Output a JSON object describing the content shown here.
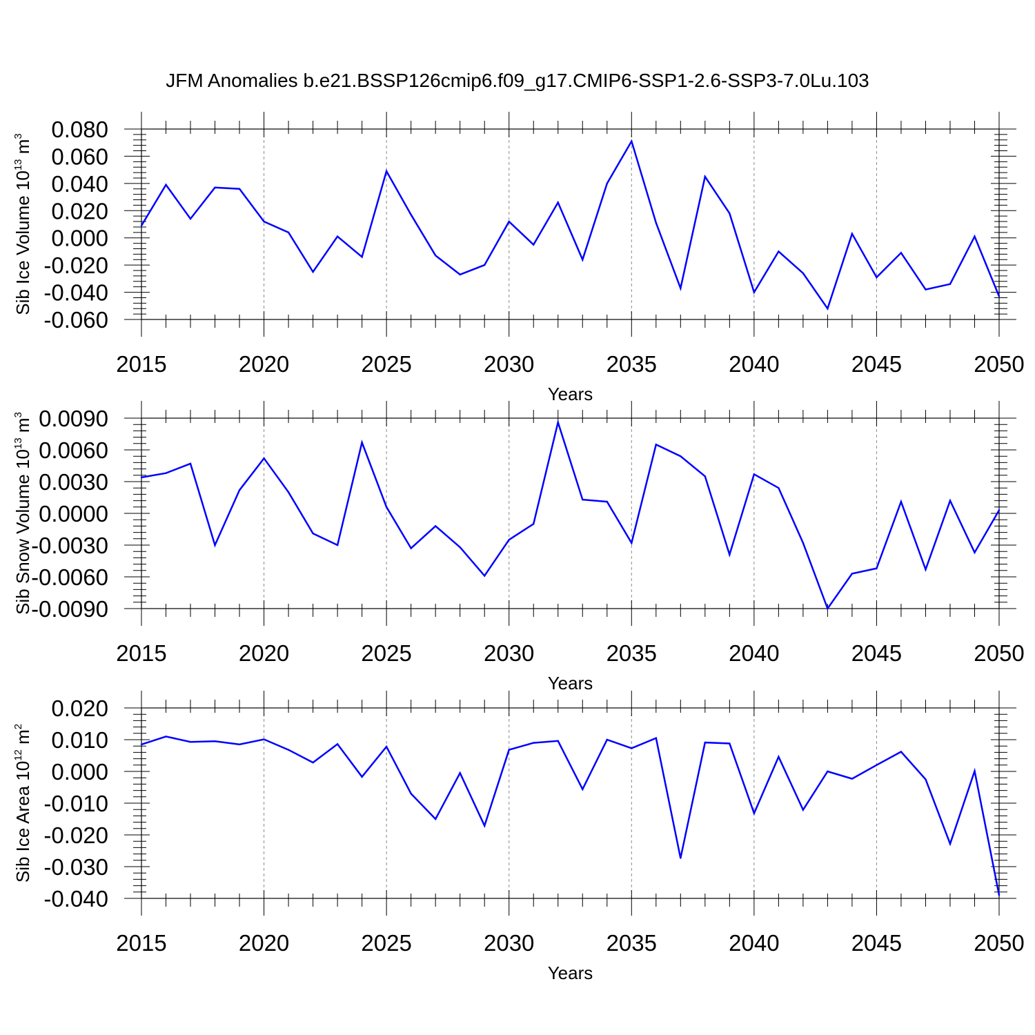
{
  "title": "JFM Anomalies b.e21.BSSP126cmip6.f09_g17.CMIP6-SSP1-2.6-SSP3-7.0Lu.103",
  "chart_data": [
    {
      "type": "line",
      "ylabel": {
        "text": "Sib Ice Volume 10",
        "exp": "13",
        "unit": " m",
        "unit_exp": "3"
      },
      "xlabel": "Years",
      "xlim": [
        2015,
        2050
      ],
      "ylim": [
        -0.06,
        0.08
      ],
      "x_ticks": [
        2015,
        2020,
        2025,
        2030,
        2035,
        2040,
        2045,
        2050
      ],
      "x_tick_labels": [
        "2015",
        "2020",
        "2025",
        "2030",
        "2035",
        "2040",
        "2045",
        "2050"
      ],
      "y_ticks": [
        -0.06,
        -0.04,
        -0.02,
        0.0,
        0.02,
        0.04,
        0.06,
        0.08
      ],
      "y_tick_labels": [
        "-0.060",
        "-0.040",
        "-0.020",
        "0.000",
        "0.020",
        "0.040",
        "0.060",
        "0.080"
      ],
      "line_color": "#0000ff",
      "grid": "vertical dashed at major x ticks",
      "x": [
        2015,
        2016,
        2017,
        2018,
        2019,
        2020,
        2021,
        2022,
        2023,
        2024,
        2025,
        2026,
        2027,
        2028,
        2029,
        2030,
        2031,
        2032,
        2033,
        2034,
        2035,
        2036,
        2037,
        2038,
        2039,
        2040,
        2041,
        2042,
        2043,
        2044,
        2045,
        2046,
        2047,
        2048,
        2049,
        2050
      ],
      "values": [
        0.009,
        0.039,
        0.014,
        0.037,
        0.036,
        0.012,
        0.004,
        -0.025,
        0.001,
        -0.014,
        0.049,
        0.017,
        -0.013,
        -0.027,
        -0.02,
        0.012,
        -0.005,
        0.026,
        -0.016,
        0.04,
        0.071,
        0.011,
        -0.037,
        0.045,
        0.018,
        -0.04,
        -0.01,
        -0.026,
        -0.052,
        0.003,
        -0.029,
        -0.011,
        -0.038,
        -0.034,
        0.001,
        -0.043
      ]
    },
    {
      "type": "line",
      "ylabel": {
        "text": "Sib Snow Volume 10",
        "exp": "13",
        "unit": " m",
        "unit_exp": "3"
      },
      "xlabel": "Years",
      "xlim": [
        2015,
        2050
      ],
      "ylim": [
        -0.009,
        0.009
      ],
      "x_ticks": [
        2015,
        2020,
        2025,
        2030,
        2035,
        2040,
        2045,
        2050
      ],
      "x_tick_labels": [
        "2015",
        "2020",
        "2025",
        "2030",
        "2035",
        "2040",
        "2045",
        "2050"
      ],
      "y_ticks": [
        -0.009,
        -0.006,
        -0.003,
        0.0,
        0.003,
        0.006,
        0.009
      ],
      "y_tick_labels": [
        "-0.0090",
        "-0.0060",
        "-0.0030",
        "0.0000",
        "0.0030",
        "0.0060",
        "0.0090"
      ],
      "line_color": "#0000ff",
      "grid": "vertical dashed at major x ticks",
      "x": [
        2015,
        2016,
        2017,
        2018,
        2019,
        2020,
        2021,
        2022,
        2023,
        2024,
        2025,
        2026,
        2027,
        2028,
        2029,
        2030,
        2031,
        2032,
        2033,
        2034,
        2035,
        2036,
        2037,
        2038,
        2039,
        2040,
        2041,
        2042,
        2043,
        2044,
        2045,
        2046,
        2047,
        2048,
        2049,
        2050
      ],
      "values": [
        0.0034,
        0.0038,
        0.0047,
        -0.003,
        0.0022,
        0.0052,
        0.002,
        -0.0019,
        -0.003,
        0.0067,
        0.0006,
        -0.0033,
        -0.0012,
        -0.0032,
        -0.0059,
        -0.0025,
        -0.001,
        0.0086,
        0.0013,
        0.0011,
        -0.0028,
        0.0065,
        0.0054,
        0.0035,
        -0.0039,
        0.0037,
        0.0024,
        -0.0028,
        -0.009,
        -0.0057,
        -0.0052,
        0.0011,
        -0.0053,
        0.0012,
        -0.0037,
        0.0003
      ]
    },
    {
      "type": "line",
      "ylabel": {
        "text": "Sib Ice Area 10",
        "exp": "12",
        "unit": " m",
        "unit_exp": "2"
      },
      "xlabel": "Years",
      "xlim": [
        2015,
        2050
      ],
      "ylim": [
        -0.04,
        0.02
      ],
      "x_ticks": [
        2015,
        2020,
        2025,
        2030,
        2035,
        2040,
        2045,
        2050
      ],
      "x_tick_labels": [
        "2015",
        "2020",
        "2025",
        "2030",
        "2035",
        "2040",
        "2045",
        "2050"
      ],
      "y_ticks": [
        -0.04,
        -0.03,
        -0.02,
        -0.01,
        0.0,
        0.01,
        0.02
      ],
      "y_tick_labels": [
        "-0.040",
        "-0.030",
        "-0.020",
        "-0.010",
        "0.000",
        "0.010",
        "0.020"
      ],
      "line_color": "#0000ff",
      "grid": "vertical dashed at major x ticks",
      "x": [
        2015,
        2016,
        2017,
        2018,
        2019,
        2020,
        2021,
        2022,
        2023,
        2024,
        2025,
        2026,
        2027,
        2028,
        2029,
        2030,
        2031,
        2032,
        2033,
        2034,
        2035,
        2036,
        2037,
        2038,
        2039,
        2040,
        2041,
        2042,
        2043,
        2044,
        2045,
        2046,
        2047,
        2048,
        2049,
        2050
      ],
      "values": [
        0.0085,
        0.011,
        0.0093,
        0.0095,
        0.0085,
        0.0101,
        0.0068,
        0.0028,
        0.0086,
        -0.0017,
        0.0078,
        -0.007,
        -0.015,
        -0.0005,
        -0.0171,
        0.0068,
        0.009,
        0.0096,
        -0.0056,
        0.01,
        0.0073,
        0.0105,
        -0.0273,
        0.0091,
        0.0088,
        -0.0132,
        0.0046,
        -0.0121,
        0.0,
        -0.0023,
        0.002,
        0.0062,
        -0.0025,
        -0.0228,
        0.0001,
        -0.039
      ]
    }
  ]
}
